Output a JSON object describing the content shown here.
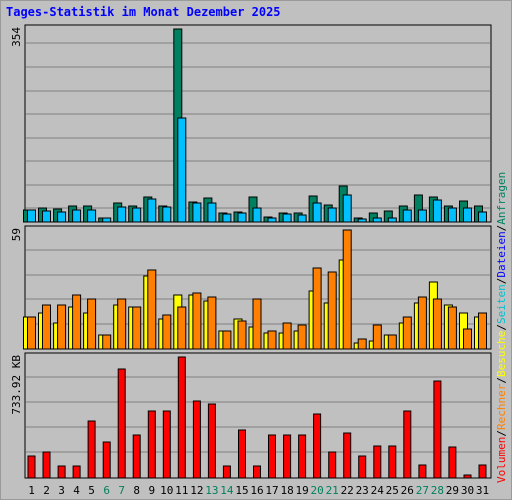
{
  "title": "Tages-Statistik im Monat Dezember 2025",
  "colors": {
    "background": "#c0c0c0",
    "grid": "#808080",
    "title": "#0000ff",
    "hits": "#008060",
    "files": "#00c0ff",
    "pages": "#00c0d0",
    "visits": "#ffff00",
    "sites": "#ff8000",
    "kbytes": "#ff0000",
    "weekend": "#00805c",
    "weekday": "#000000"
  },
  "legend": [
    {
      "text": "Volumen",
      "color": "#ff0000"
    },
    {
      "text": "/",
      "color": "#000000"
    },
    {
      "text": "Rechner",
      "color": "#ff8000"
    },
    {
      "text": "/",
      "color": "#000000"
    },
    {
      "text": "Besuche",
      "color": "#ffff00"
    },
    {
      "text": "/",
      "color": "#000000"
    },
    {
      "text": "Seiten",
      "color": "#00c0d0"
    },
    {
      "text": "/",
      "color": "#000000"
    },
    {
      "text": "Dateien",
      "color": "#0000ff"
    },
    {
      "text": "/",
      "color": "#000000"
    },
    {
      "text": "Anfragen",
      "color": "#008060"
    }
  ],
  "chart_data": [
    {
      "type": "bar",
      "panel": "top",
      "max_label": "354",
      "ylim": [
        0,
        354
      ],
      "grid": true,
      "categories": [
        "1",
        "2",
        "3",
        "4",
        "5",
        "6",
        "7",
        "8",
        "9",
        "10",
        "11",
        "12",
        "13",
        "14",
        "15",
        "16",
        "17",
        "18",
        "19",
        "20",
        "21",
        "22",
        "23",
        "24",
        "25",
        "26",
        "27",
        "28",
        "29",
        "30",
        "31"
      ],
      "weekend_days": [
        6,
        7,
        13,
        14,
        20,
        21,
        27,
        28
      ],
      "series": [
        {
          "name": "Anfragen",
          "color": "#008060",
          "values": [
            22,
            25,
            24,
            30,
            30,
            8,
            35,
            29,
            45,
            30,
            354,
            37,
            44,
            17,
            18,
            46,
            10,
            17,
            17,
            48,
            31,
            66,
            8,
            17,
            20,
            30,
            50,
            45,
            30,
            38,
            30
          ]
        },
        {
          "name": "Dateien",
          "color": "#00c0ff",
          "values": [
            22,
            21,
            19,
            22,
            22,
            7,
            28,
            25,
            42,
            27,
            190,
            34,
            35,
            14,
            17,
            25,
            8,
            14,
            12,
            35,
            25,
            49,
            6,
            7,
            7,
            22,
            22,
            40,
            25,
            25,
            18
          ]
        }
      ]
    },
    {
      "type": "bar",
      "panel": "middle",
      "max_label": "59",
      "ylim": [
        0,
        59
      ],
      "grid": true,
      "categories": [
        "1",
        "2",
        "3",
        "4",
        "5",
        "6",
        "7",
        "8",
        "9",
        "10",
        "11",
        "12",
        "13",
        "14",
        "15",
        "16",
        "17",
        "18",
        "19",
        "20",
        "21",
        "22",
        "23",
        "24",
        "25",
        "26",
        "27",
        "28",
        "29",
        "30",
        "31"
      ],
      "series": [
        {
          "name": "Besuche",
          "color": "#ffff00",
          "values": [
            16,
            18,
            13,
            21,
            18,
            7,
            22,
            21,
            36,
            15,
            27,
            27,
            24,
            9,
            15,
            11,
            8,
            8,
            9,
            29,
            23,
            44,
            3,
            4,
            7,
            13,
            23,
            33,
            22,
            18,
            16
          ]
        },
        {
          "name": "Rechner",
          "color": "#ff8000",
          "values": [
            16,
            22,
            22,
            27,
            25,
            7,
            25,
            21,
            39,
            17,
            21,
            28,
            26,
            9,
            14,
            25,
            9,
            13,
            12,
            40,
            38,
            59,
            5,
            12,
            7,
            16,
            26,
            25,
            21,
            10,
            18
          ]
        }
      ]
    },
    {
      "type": "bar",
      "panel": "bottom",
      "max_label": "733.92 KB",
      "ylim": [
        0,
        733.92
      ],
      "grid": true,
      "categories": [
        "1",
        "2",
        "3",
        "4",
        "5",
        "6",
        "7",
        "8",
        "9",
        "10",
        "11",
        "12",
        "13",
        "14",
        "15",
        "16",
        "17",
        "18",
        "19",
        "20",
        "21",
        "22",
        "23",
        "24",
        "25",
        "26",
        "27",
        "28",
        "29",
        "30",
        "31"
      ],
      "series": [
        {
          "name": "Volumen",
          "color": "#ff0000",
          "values": [
            136,
            158,
            72,
            72,
            345,
            216,
            659,
            263,
            407,
            407,
            733.92,
            467,
            451,
            72,
            294,
            72,
            258,
            258,
            258,
            388,
            158,
            274,
            136,
            196,
            196,
            407,
            80,
            590,
            188,
            18,
            80
          ]
        }
      ]
    }
  ]
}
